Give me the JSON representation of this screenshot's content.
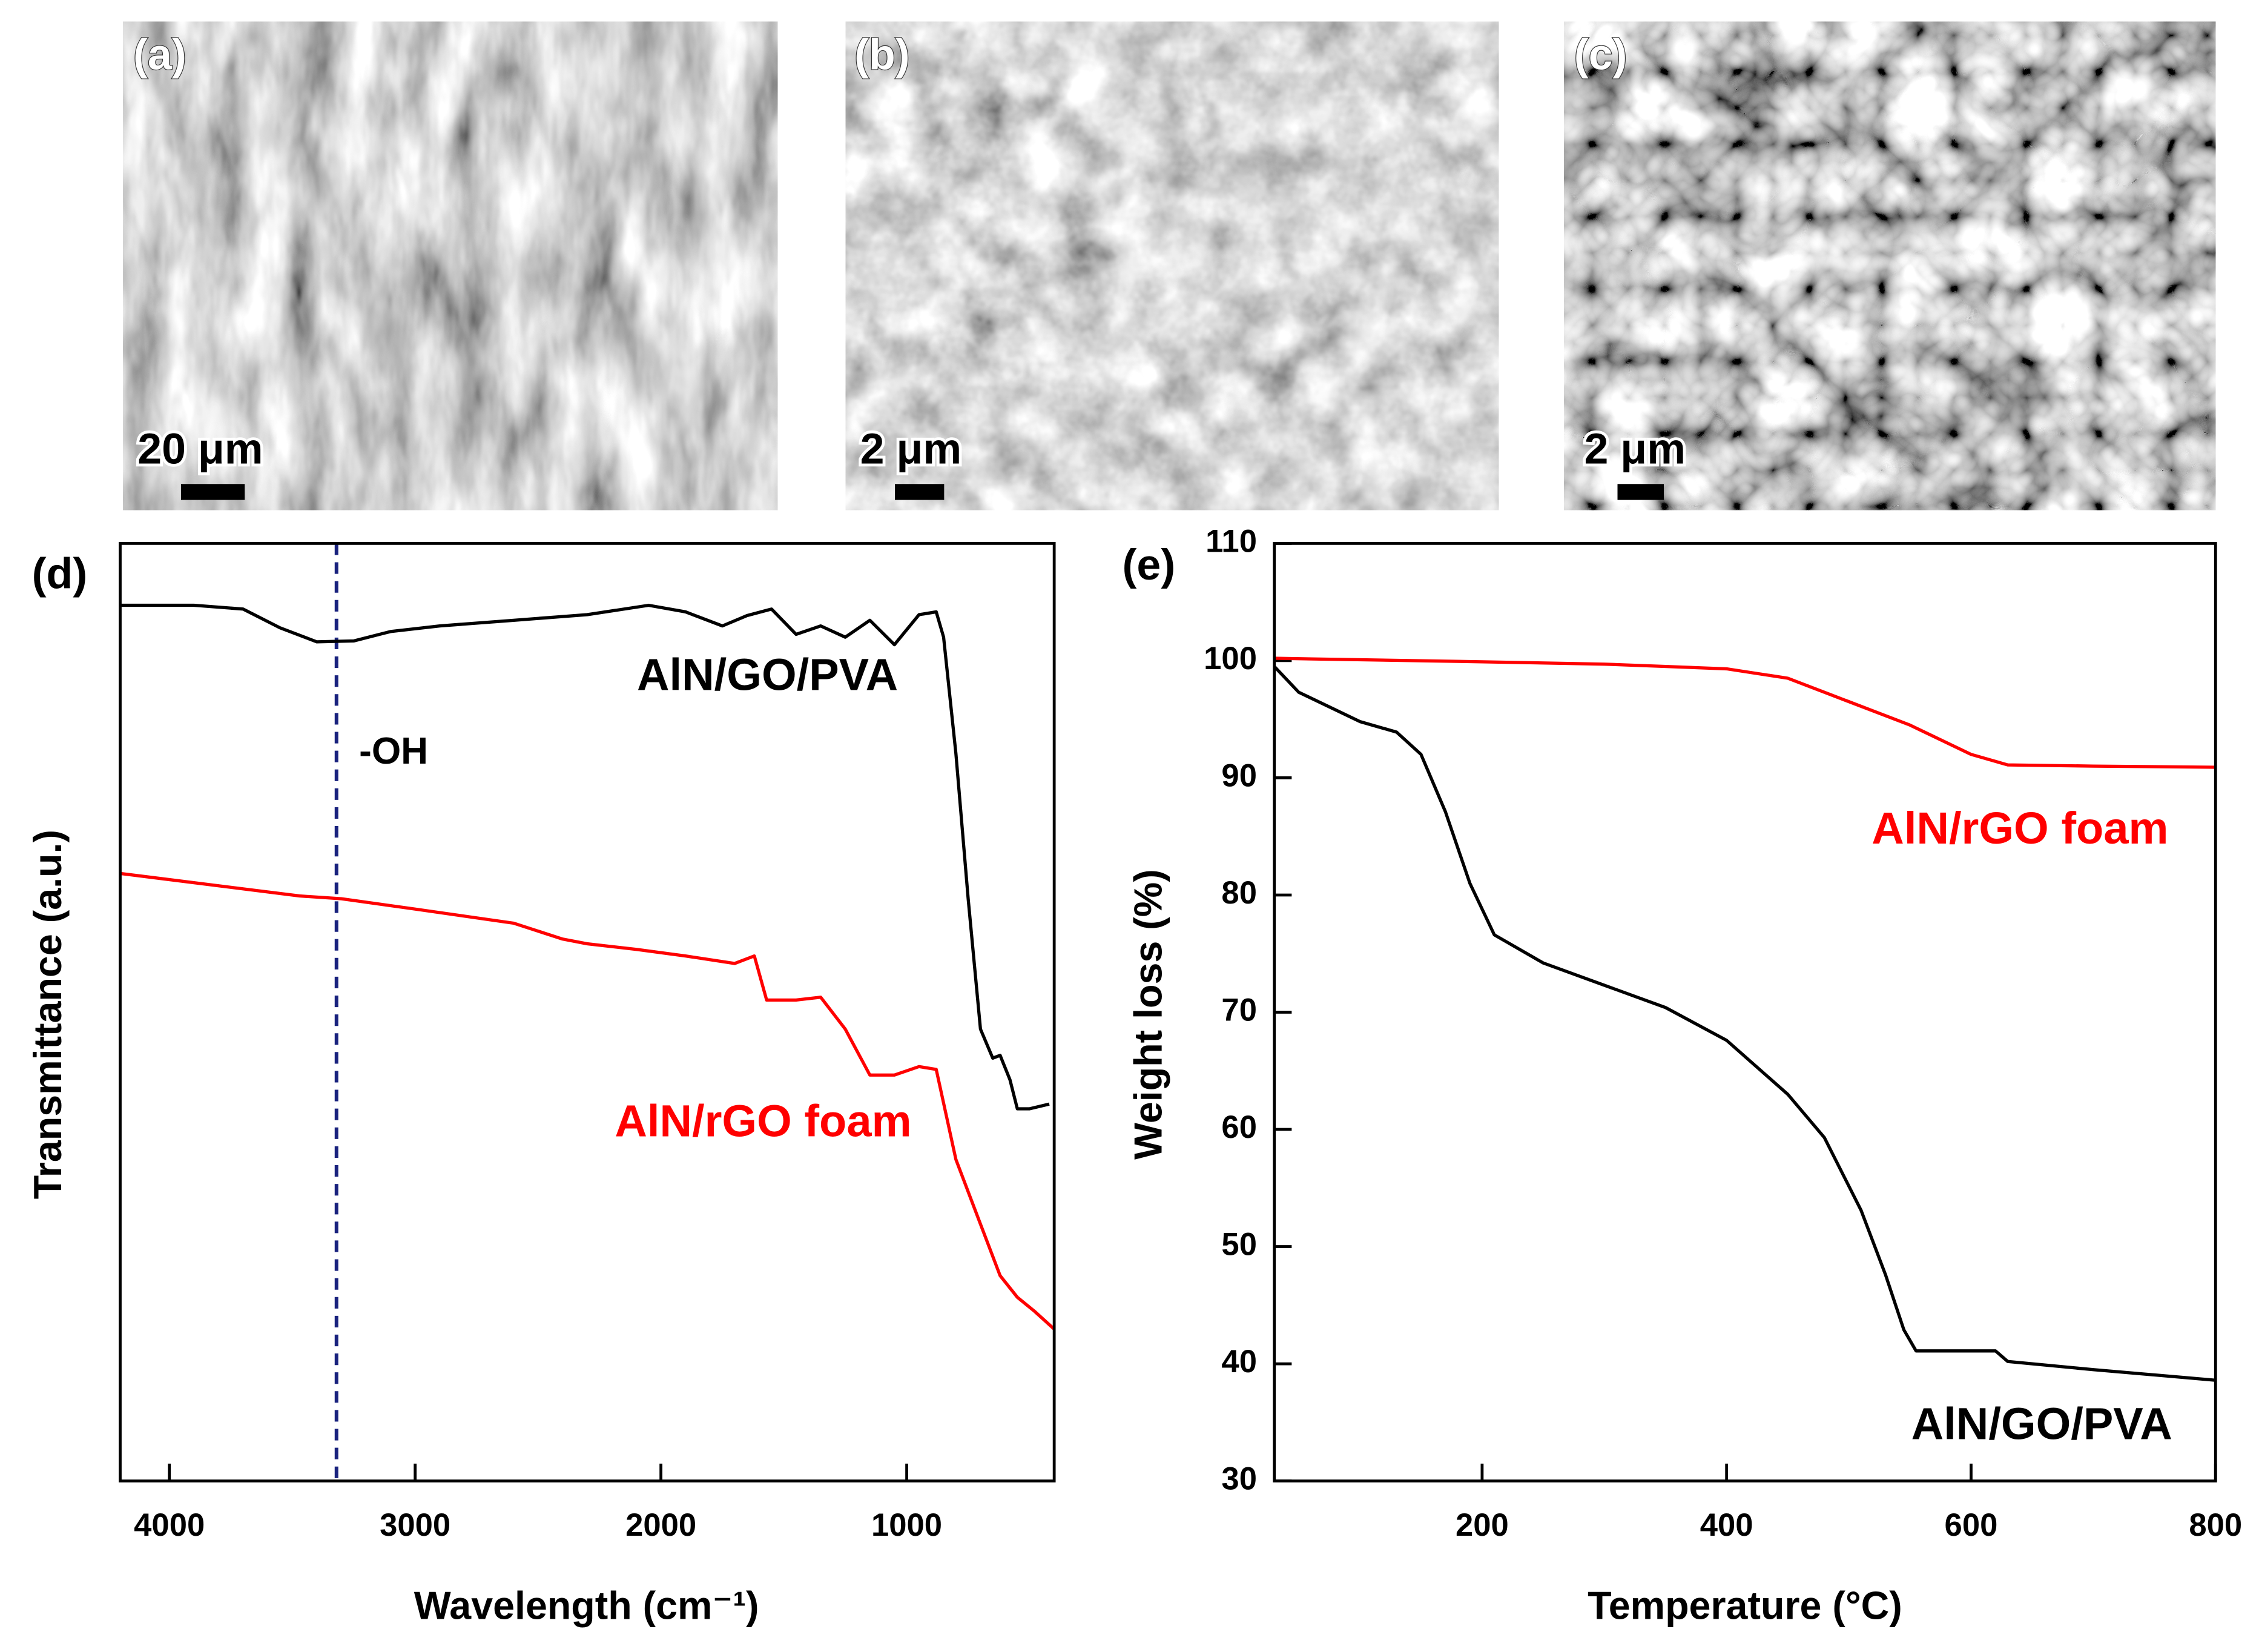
{
  "images": [
    {
      "label": "(a)",
      "scale_bar": "20 μm"
    },
    {
      "label": "(b)",
      "scale_bar": "2 μm"
    },
    {
      "label": "(c)",
      "scale_bar": "2 μm"
    }
  ],
  "chart_data": [
    {
      "type": "line",
      "panel_label": "(d)",
      "x_label": "Wavelength (cm⁻¹)",
      "y_label": "Transmittance (a.u.)",
      "xlim": [
        4200,
        400
      ],
      "xticks": [
        4000,
        3000,
        2000,
        1000
      ],
      "ylim": [
        0,
        100
      ],
      "annotations": [
        {
          "x": 3320,
          "text": "-OH"
        }
      ],
      "series": [
        {
          "name": "AlN/GO/PVA",
          "color": "#000000",
          "x": [
            4200,
            3900,
            3700,
            3550,
            3400,
            3250,
            3100,
            2900,
            2600,
            2300,
            2050,
            1900,
            1750,
            1650,
            1550,
            1450,
            1350,
            1250,
            1150,
            1050,
            950,
            880,
            850,
            800,
            750,
            700,
            650,
            620,
            580,
            550,
            500,
            420
          ],
          "values": [
            93.4,
            93.4,
            93.0,
            91.0,
            89.5,
            89.6,
            90.6,
            91.2,
            91.8,
            92.4,
            93.4,
            92.7,
            91.2,
            92.3,
            93.0,
            90.3,
            91.2,
            90.0,
            91.8,
            89.2,
            92.4,
            92.7,
            90.0,
            77.6,
            62.1,
            48.2,
            45.1,
            45.4,
            42.8,
            39.7,
            39.7,
            40.2
          ]
        },
        {
          "name": "AlN/rGO foam",
          "color": "#ff0000",
          "x": [
            4200,
            3470,
            3300,
            3000,
            2600,
            2400,
            2300,
            2100,
            1900,
            1700,
            1620,
            1570,
            1450,
            1350,
            1250,
            1150,
            1050,
            950,
            880,
            800,
            700,
            620,
            550,
            480,
            400
          ],
          "values": [
            64.8,
            62.4,
            62.1,
            61.0,
            59.5,
            57.8,
            57.3,
            56.7,
            56.0,
            55.2,
            56.0,
            51.3,
            51.3,
            51.6,
            48.2,
            43.3,
            43.3,
            44.2,
            43.9,
            34.3,
            27.4,
            21.9,
            19.6,
            18.1,
            16.2
          ]
        }
      ]
    },
    {
      "type": "line",
      "panel_label": "(e)",
      "x_label": "Temperature (°C)",
      "y_label": "Weight loss (%)",
      "xlim": [
        30,
        800
      ],
      "xticks": [
        200,
        400,
        600,
        800
      ],
      "ylim": [
        30,
        110
      ],
      "yticks": [
        30,
        40,
        50,
        60,
        70,
        80,
        90,
        100,
        110
      ],
      "series": [
        {
          "name": "AlN/rGO foam",
          "color": "#ff0000",
          "x": [
            30,
            200,
            300,
            400,
            450,
            500,
            550,
            600,
            630,
            700,
            800
          ],
          "values": [
            100.2,
            99.9,
            99.7,
            99.3,
            98.5,
            96.5,
            94.5,
            92.0,
            91.1,
            91.0,
            90.9
          ]
        },
        {
          "name": "AlN/GO/PVA",
          "color": "#000000",
          "x": [
            30,
            50,
            100,
            130,
            150,
            170,
            190,
            210,
            250,
            300,
            350,
            400,
            450,
            480,
            510,
            530,
            545,
            555,
            600,
            620,
            630,
            700,
            800
          ],
          "values": [
            99.5,
            97.3,
            94.8,
            93.9,
            92.0,
            87.1,
            81.0,
            76.6,
            74.2,
            72.3,
            70.4,
            67.6,
            63.0,
            59.3,
            53.1,
            47.6,
            42.9,
            41.1,
            41.1,
            41.1,
            40.2,
            39.5,
            38.6
          ]
        }
      ]
    }
  ]
}
